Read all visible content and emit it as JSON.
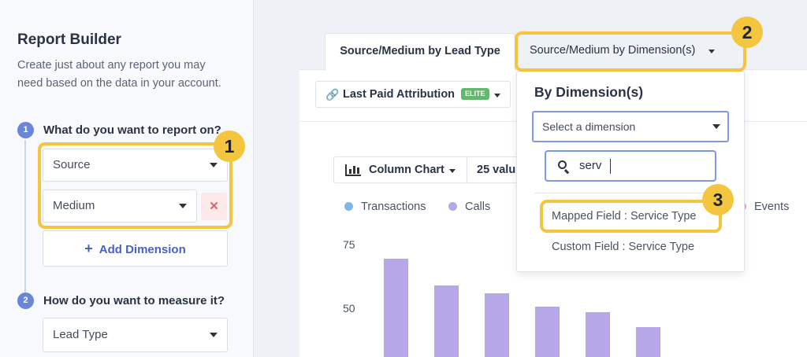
{
  "sidebar": {
    "title": "Report Builder",
    "description": "Create just about any report you may need based on the data in your account.",
    "steps": [
      {
        "number": "1",
        "label": "What do you want to report on?"
      },
      {
        "number": "2",
        "label": "How do you want to measure it?"
      }
    ],
    "dimension_1": "Source",
    "dimension_2": "Medium",
    "remove_label": "✕",
    "add_dimension": "Add Dimension",
    "add_icon": "+",
    "measure": "Lead Type"
  },
  "tabs": [
    {
      "label": "Source/Medium by Lead Type",
      "active": true
    },
    {
      "label": "Source/Medium by Dimension(s)",
      "active": false
    }
  ],
  "toolbar": {
    "attribution_label": "Last Paid Attribution",
    "attribution_badge": "ELITE",
    "link_icon": "🔗",
    "chart_type": "Column Chart",
    "rows_label": "25 valu"
  },
  "dropdown": {
    "title": "By Dimension(s)",
    "select_placeholder": "Select a dimension",
    "search_value": "serv",
    "options": [
      {
        "label": "Mapped Field : Service Type",
        "highlighted": true
      },
      {
        "label": "Custom Field : Service Type",
        "highlighted": false
      }
    ]
  },
  "annotations": [
    "1",
    "2",
    "3"
  ],
  "chart_data": {
    "type": "bar",
    "legend": [
      {
        "name": "Transactions",
        "color": "#7eb6e9"
      },
      {
        "name": "Calls",
        "color": "#b5a7e8"
      },
      {
        "name": "Events",
        "color": "#f3a3c6"
      }
    ],
    "yticks": [
      "75",
      "50"
    ],
    "values": [
      69.5,
      59,
      56,
      50.5,
      48.5,
      42.5
    ],
    "ylim": [
      30,
      75
    ],
    "bar_color": "#b5a7e8"
  }
}
